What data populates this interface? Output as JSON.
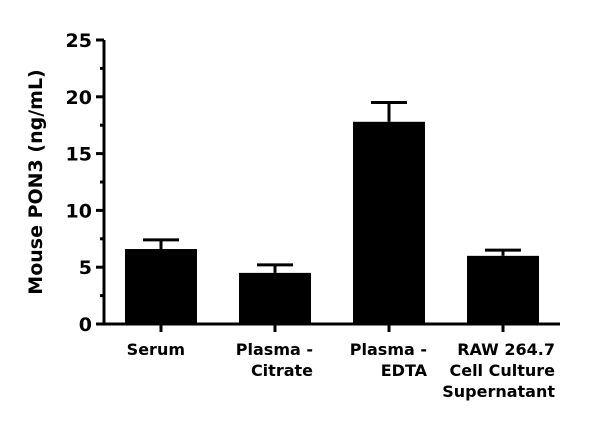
{
  "chart_data": {
    "type": "bar",
    "title": "",
    "xlabel": "",
    "ylabel": "Mouse PON3 (ng/mL)",
    "ylim": [
      0,
      25
    ],
    "yticks": [
      0,
      5,
      10,
      15,
      20,
      25
    ],
    "grid": false,
    "legend": null,
    "categories": [
      [
        "Serum"
      ],
      [
        "Plasma -",
        "Citrate"
      ],
      [
        "Plasma -",
        "EDTA"
      ],
      [
        "RAW 264.7",
        "Cell Culture",
        "Supernatant"
      ]
    ],
    "values": [
      6.6,
      4.5,
      17.8,
      6.0
    ],
    "error_upper": [
      7.4,
      5.2,
      19.5,
      6.5
    ],
    "bar_color": "#000000"
  }
}
